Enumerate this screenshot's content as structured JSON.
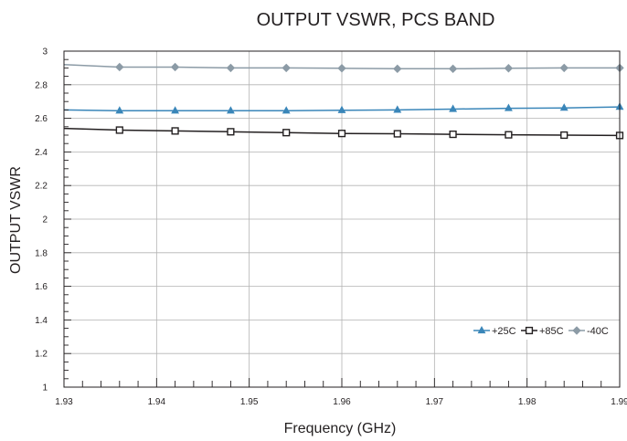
{
  "chart_data": {
    "type": "line",
    "title": "OUTPUT VSWR, PCS BAND",
    "xlabel": "Frequency (GHz)",
    "ylabel": "OUTPUT VSWR",
    "xlim": [
      1.93,
      1.99
    ],
    "ylim": [
      1,
      3
    ],
    "x_ticks": [
      "1.93",
      "1.94",
      "1.95",
      "1.96",
      "1.97",
      "1.98",
      "1.99"
    ],
    "y_ticks": [
      "1",
      "1.2",
      "1.4",
      "1.6",
      "1.8",
      "2",
      "2.2",
      "2.4",
      "2.6",
      "2.8",
      "3"
    ],
    "grid": true,
    "legend_position": "bottom-right",
    "series": [
      {
        "name": "+25C",
        "color": "#3a86b9",
        "marker": "triangle",
        "x": [
          1.93,
          1.936,
          1.942,
          1.948,
          1.954,
          1.96,
          1.966,
          1.972,
          1.978,
          1.984,
          1.99
        ],
        "y": [
          2.65,
          2.645,
          2.645,
          2.645,
          2.645,
          2.648,
          2.65,
          2.655,
          2.66,
          2.662,
          2.668
        ]
      },
      {
        "name": "+85C",
        "color": "#231f20",
        "marker": "square",
        "x": [
          1.93,
          1.936,
          1.942,
          1.948,
          1.954,
          1.96,
          1.966,
          1.972,
          1.978,
          1.984,
          1.99
        ],
        "y": [
          2.54,
          2.53,
          2.525,
          2.52,
          2.515,
          2.51,
          2.508,
          2.505,
          2.502,
          2.5,
          2.498
        ]
      },
      {
        "name": "-40C",
        "color": "#8c9ba6",
        "marker": "diamond",
        "x": [
          1.93,
          1.936,
          1.942,
          1.948,
          1.954,
          1.96,
          1.966,
          1.972,
          1.978,
          1.984,
          1.99
        ],
        "y": [
          2.92,
          2.905,
          2.905,
          2.9,
          2.9,
          2.898,
          2.895,
          2.895,
          2.898,
          2.9,
          2.9
        ]
      }
    ]
  }
}
